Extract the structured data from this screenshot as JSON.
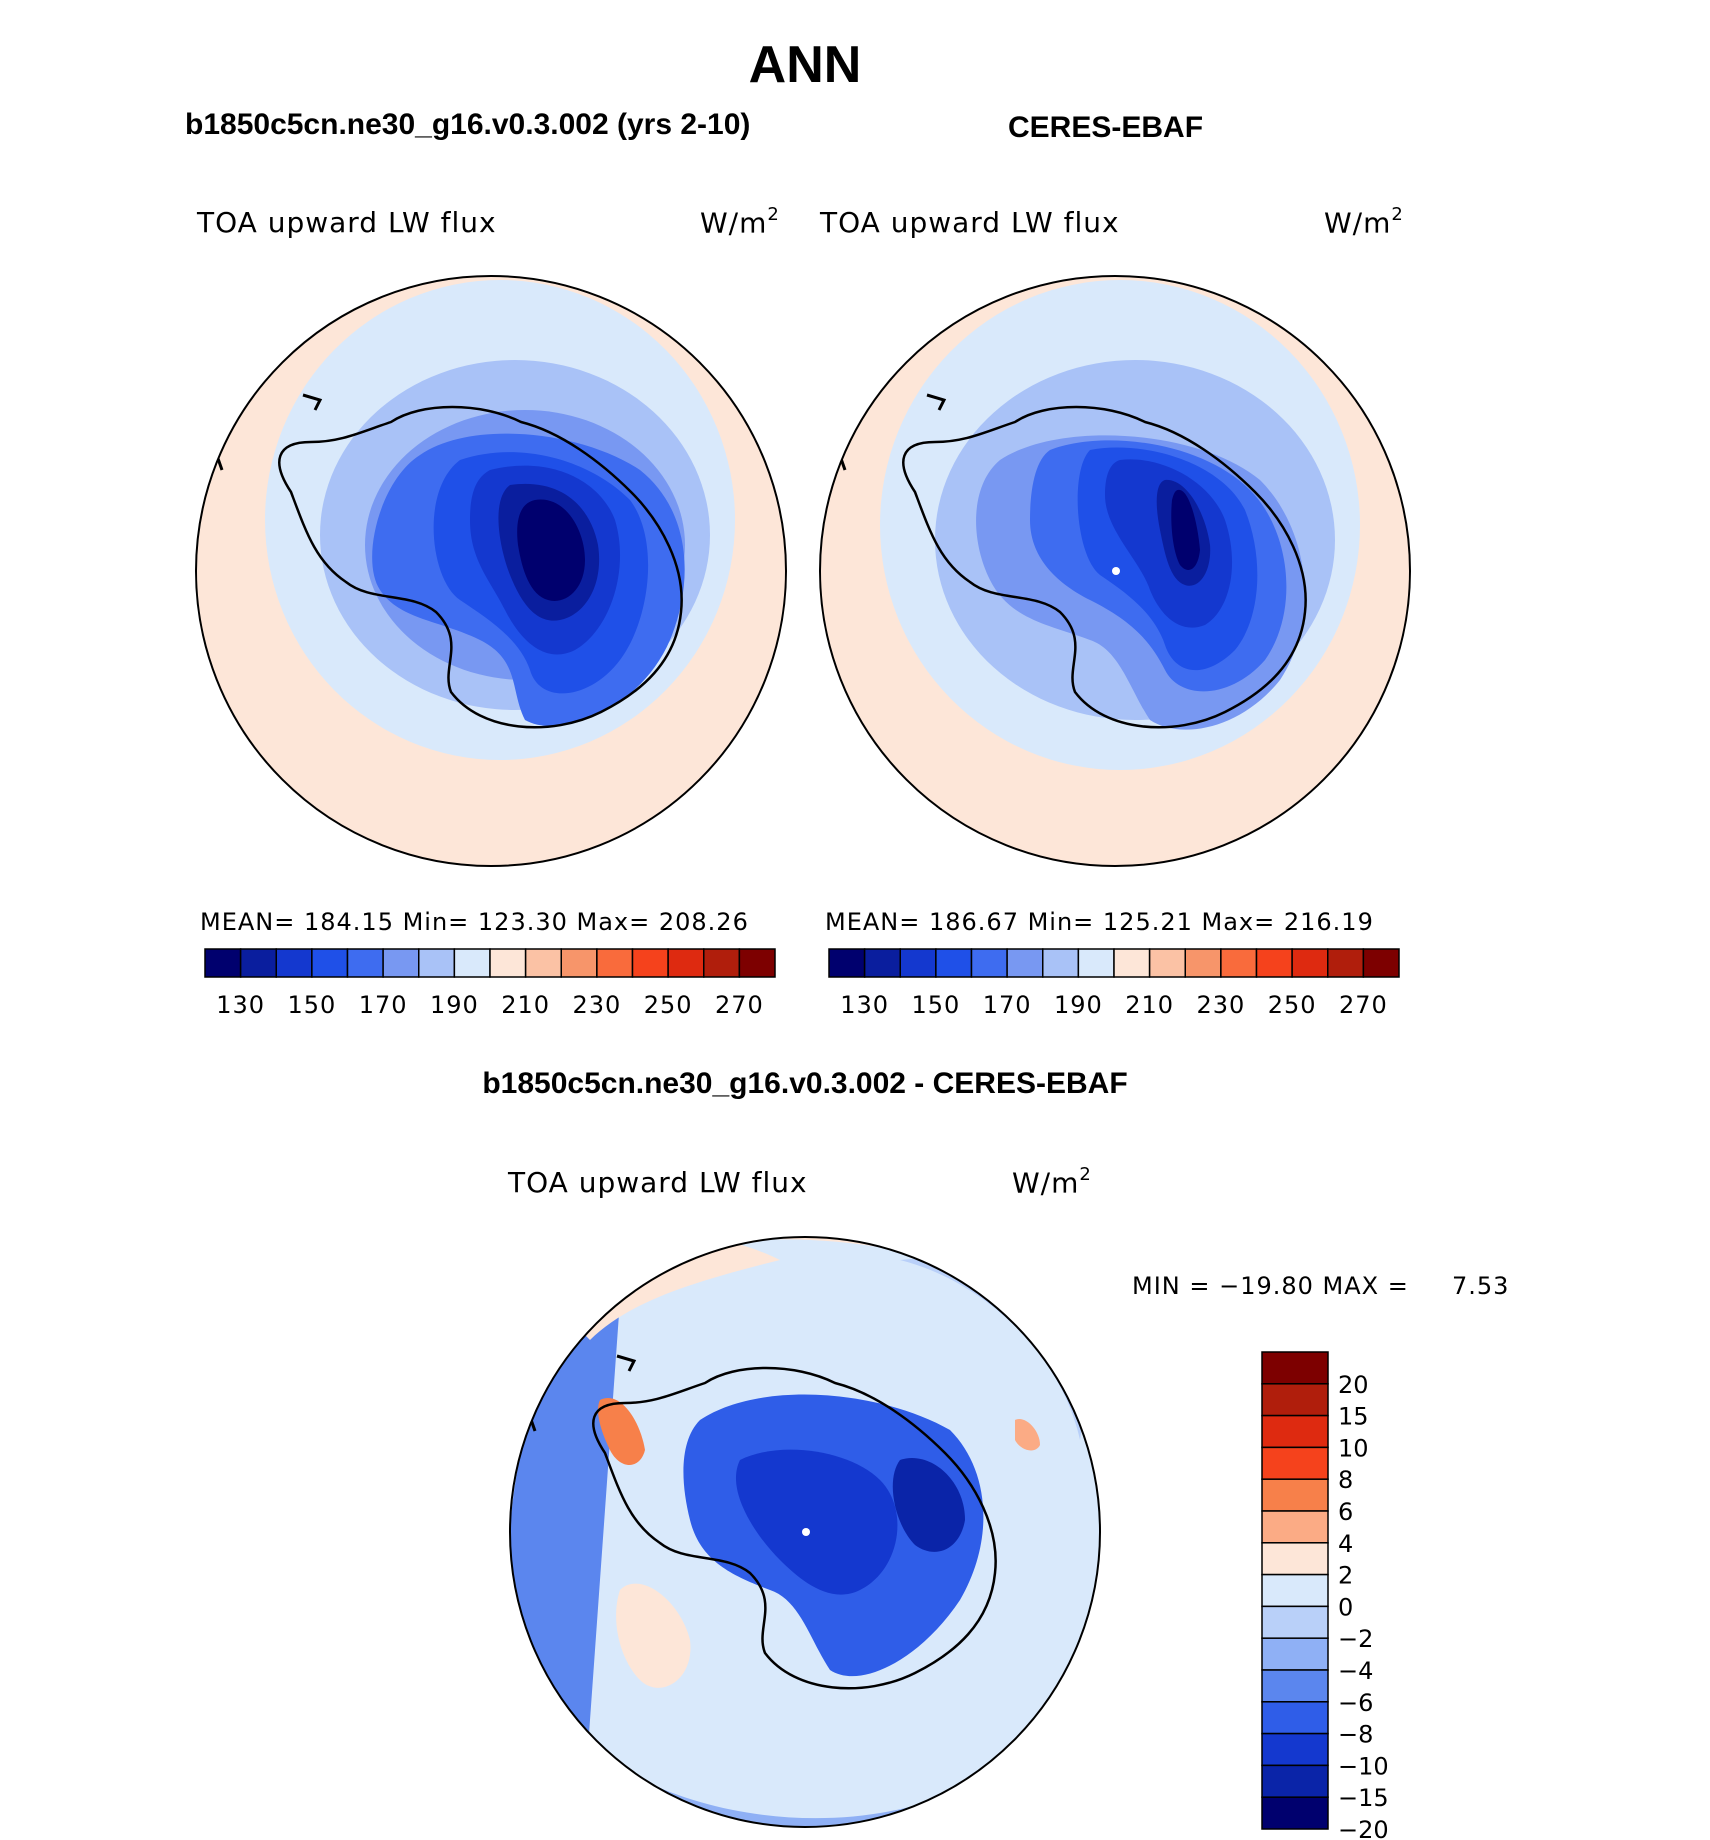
{
  "title": "ANN",
  "panels": {
    "model": {
      "title": "b1850c5cn.ne30_g16.v0.3.002 (yrs 2-10)",
      "variable": "TOA upward LW flux",
      "units_base": "W/m",
      "units_exp": "2",
      "stats": "MEAN=  184.15   Min=  123.30   Max=  208.26"
    },
    "obs": {
      "title": "CERES-EBAF",
      "variable": "TOA upward LW flux",
      "units_base": "W/m",
      "units_exp": "2",
      "stats": "MEAN=  186.67   Min=  125.21   Max=  216.19"
    },
    "diff": {
      "title": "b1850c5cn.ne30_g16.v0.3.002 - CERES-EBAF",
      "variable": "TOA upward LW flux",
      "units_base": "W/m",
      "units_exp": "2",
      "stats": "MIN = −19.80 MAX =     7.53"
    }
  },
  "chart_data": [
    {
      "type": "heatmap",
      "projection": "south-polar-stereographic",
      "title": "b1850c5cn.ne30_g16.v0.3.002 (yrs 2-10)",
      "variable": "TOA upward LW flux",
      "units": "W/m2",
      "mean": 184.15,
      "min": 123.3,
      "max": 208.26,
      "contour_levels": [
        130,
        140,
        150,
        160,
        170,
        180,
        190,
        200,
        210,
        220,
        230,
        240,
        250,
        260,
        270
      ],
      "colorbar_ticks": [
        "130",
        "150",
        "170",
        "190",
        "210",
        "230",
        "250",
        "270"
      ],
      "colors": [
        "#00006e",
        "#0a1e9e",
        "#1438cf",
        "#1f50e8",
        "#3e6cf0",
        "#7898f2",
        "#a9c2f7",
        "#d9e9fb",
        "#fde6d8",
        "#fbc2a5",
        "#f7956a",
        "#f96b3c",
        "#f5421c",
        "#de2a10",
        "#b01e0c",
        "#7d0000"
      ]
    },
    {
      "type": "heatmap",
      "projection": "south-polar-stereographic",
      "title": "CERES-EBAF",
      "variable": "TOA upward LW flux",
      "units": "W/m2",
      "mean": 186.67,
      "min": 125.21,
      "max": 216.19,
      "contour_levels": [
        130,
        140,
        150,
        160,
        170,
        180,
        190,
        200,
        210,
        220,
        230,
        240,
        250,
        260,
        270
      ],
      "colorbar_ticks": [
        "130",
        "150",
        "170",
        "190",
        "210",
        "230",
        "250",
        "270"
      ],
      "colors": [
        "#00006e",
        "#0a1e9e",
        "#1438cf",
        "#1f50e8",
        "#3e6cf0",
        "#7898f2",
        "#a9c2f7",
        "#d9e9fb",
        "#fde6d8",
        "#fbc2a5",
        "#f7956a",
        "#f96b3c",
        "#f5421c",
        "#de2a10",
        "#b01e0c",
        "#7d0000"
      ]
    },
    {
      "type": "heatmap",
      "projection": "south-polar-stereographic",
      "title": "b1850c5cn.ne30_g16.v0.3.002 - CERES-EBAF",
      "variable": "TOA upward LW flux",
      "units": "W/m2",
      "min": -19.8,
      "max": 7.53,
      "contour_levels": [
        20,
        15,
        10,
        8,
        6,
        4,
        2,
        0,
        -2,
        -4,
        -6,
        -8,
        -10,
        -15,
        -20
      ],
      "colorbar_ticks": [
        "20",
        "15",
        "10",
        "8",
        "6",
        "4",
        "2",
        "0",
        "−2",
        "−4",
        "−6",
        "−8",
        "−10",
        "−15",
        "−20"
      ],
      "colors": [
        "#7d0000",
        "#b01e0c",
        "#de2a10",
        "#f5421c",
        "#f7804a",
        "#fbab85",
        "#fde6d8",
        "#d9e9fb",
        "#b9d0f9",
        "#8fb0f5",
        "#5b86ee",
        "#2f5de8",
        "#1438cf",
        "#0a24a8",
        "#00006e"
      ]
    }
  ],
  "colors": {
    "ocean_far": "#fde6d8",
    "ocean_mid": "#d9e9fb",
    "coast_ring": "#a9c2f7",
    "outline": "#000000"
  }
}
